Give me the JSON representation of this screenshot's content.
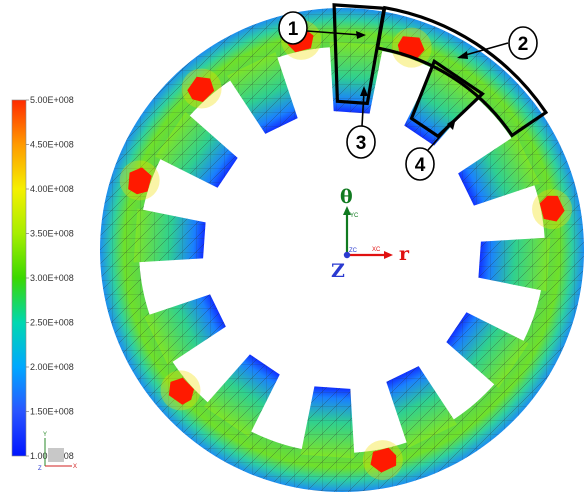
{
  "legend": {
    "labels": [
      "5.00E+008",
      "4.50E+008",
      "4.00E+008",
      "3.50E+008",
      "3.00E+008",
      "2.50E+008",
      "2.00E+008",
      "1.50E+008",
      "1.00E+008"
    ],
    "colors": [
      "#ff2a00",
      "#ff9a00",
      "#f5f000",
      "#a6ee00",
      "#3bd800",
      "#00d8b0",
      "#00a8ff",
      "#2a55ff",
      "#0015ff"
    ]
  },
  "callouts": [
    {
      "label": "1"
    },
    {
      "label": "2"
    },
    {
      "label": "3"
    },
    {
      "label": "4"
    }
  ],
  "axes": {
    "theta_label": "θ",
    "r_label": "r",
    "z_label": "Z",
    "yc_label": "YC",
    "xc_label": "XC",
    "zc_label": "ZC",
    "theta_color": "#107a20",
    "r_color": "#e01010",
    "z_color": "#2a3ad0"
  },
  "mini_triad": {
    "y_label": "Y",
    "x_label": "X",
    "z_label": "Z"
  },
  "colors": {
    "slot_edge": "#1030ff",
    "ring_edge": "#20b8ff",
    "hot": "#ff1a00",
    "mesh": "#2a2a2a"
  }
}
